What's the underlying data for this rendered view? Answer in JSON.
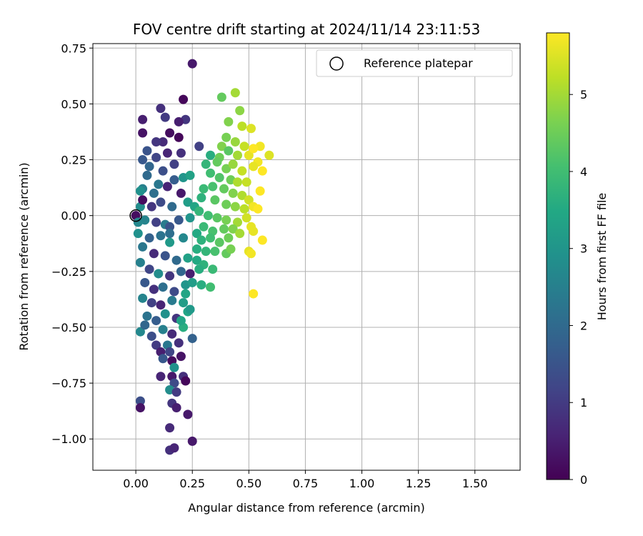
{
  "chart_data": {
    "type": "scatter",
    "title": "FOV centre drift starting at 2024/11/14 23:11:53",
    "xlabel": "Angular distance from reference (arcmin)",
    "ylabel": "Rotation from reference (arcmin)",
    "xlim": [
      -0.19,
      1.7
    ],
    "ylim": [
      -1.14,
      0.77
    ],
    "xticks": [
      0.0,
      0.25,
      0.5,
      0.75,
      1.0,
      1.25,
      1.5
    ],
    "xtick_labels": [
      "0.00",
      "0.25",
      "0.50",
      "0.75",
      "1.00",
      "1.25",
      "1.50"
    ],
    "yticks": [
      0.75,
      0.5,
      0.25,
      0.0,
      -0.25,
      -0.5,
      -0.75,
      -1.0
    ],
    "ytick_labels": [
      "0.75",
      "0.50",
      "0.25",
      "0.00",
      "−0.25",
      "−0.50",
      "−0.75",
      "−1.00"
    ],
    "grid": true,
    "legend": {
      "placement": "top-right",
      "entries": [
        {
          "label": "Reference platepar",
          "marker": "open-circle"
        }
      ]
    },
    "reference_point": {
      "x": 0.0,
      "y": 0.0
    },
    "colorbar": {
      "label": "Hours from first FF file",
      "colormap": "viridis",
      "range": [
        0,
        5.8
      ],
      "ticks": [
        0,
        1,
        2,
        3,
        4,
        5
      ],
      "tick_labels": [
        "0",
        "1",
        "2",
        "3",
        "4",
        "5"
      ]
    },
    "points": [
      {
        "x": 0.25,
        "y": 0.68,
        "h": 0.4
      },
      {
        "x": 0.21,
        "y": 0.52,
        "h": 0.1
      },
      {
        "x": 0.03,
        "y": 0.43,
        "h": 0.5
      },
      {
        "x": 0.03,
        "y": 0.37,
        "h": 0.3
      },
      {
        "x": 0.11,
        "y": 0.48,
        "h": 0.8
      },
      {
        "x": 0.13,
        "y": 0.44,
        "h": 1.0
      },
      {
        "x": 0.22,
        "y": 0.43,
        "h": 0.9
      },
      {
        "x": 0.19,
        "y": 0.42,
        "h": 0.5
      },
      {
        "x": 0.15,
        "y": 0.37,
        "h": 0.2
      },
      {
        "x": 0.19,
        "y": 0.35,
        "h": 0.1
      },
      {
        "x": 0.12,
        "y": 0.33,
        "h": 0.7
      },
      {
        "x": 0.09,
        "y": 0.33,
        "h": 0.9
      },
      {
        "x": 0.05,
        "y": 0.29,
        "h": 1.5
      },
      {
        "x": 0.14,
        "y": 0.28,
        "h": 0.6
      },
      {
        "x": 0.2,
        "y": 0.28,
        "h": 0.8
      },
      {
        "x": 0.09,
        "y": 0.26,
        "h": 1.2
      },
      {
        "x": 0.17,
        "y": 0.23,
        "h": 1.1
      },
      {
        "x": 0.03,
        "y": 0.25,
        "h": 1.6
      },
      {
        "x": 0.06,
        "y": 0.22,
        "h": 1.9
      },
      {
        "x": 0.12,
        "y": 0.2,
        "h": 1.4
      },
      {
        "x": 0.05,
        "y": 0.18,
        "h": 2.0
      },
      {
        "x": 0.17,
        "y": 0.16,
        "h": 1.7
      },
      {
        "x": 0.21,
        "y": 0.17,
        "h": 3.0
      },
      {
        "x": 0.24,
        "y": 0.18,
        "h": 3.3
      },
      {
        "x": 0.1,
        "y": 0.14,
        "h": 2.3
      },
      {
        "x": 0.14,
        "y": 0.13,
        "h": 0.6
      },
      {
        "x": 0.03,
        "y": 0.12,
        "h": 2.5
      },
      {
        "x": 0.08,
        "y": 0.1,
        "h": 2.1
      },
      {
        "x": 0.2,
        "y": 0.1,
        "h": 0.4
      },
      {
        "x": 0.23,
        "y": 0.06,
        "h": 3.2
      },
      {
        "x": 0.02,
        "y": 0.04,
        "h": 2.8
      },
      {
        "x": 0.11,
        "y": 0.06,
        "h": 1.3
      },
      {
        "x": 0.16,
        "y": 0.04,
        "h": 2.0
      },
      {
        "x": 0.26,
        "y": 0.04,
        "h": 3.4
      },
      {
        "x": 0.03,
        "y": 0.07,
        "h": 0.2
      },
      {
        "x": 0.04,
        "y": -0.02,
        "h": 2.6
      },
      {
        "x": 0.09,
        "y": -0.03,
        "h": 1.1
      },
      {
        "x": 0.13,
        "y": -0.04,
        "h": 2.4
      },
      {
        "x": 0.19,
        "y": -0.02,
        "h": 1.6
      },
      {
        "x": 0.24,
        "y": -0.01,
        "h": 3.0
      },
      {
        "x": 0.01,
        "y": -0.08,
        "h": 2.9
      },
      {
        "x": 0.06,
        "y": -0.1,
        "h": 1.8
      },
      {
        "x": 0.11,
        "y": -0.09,
        "h": 2.2
      },
      {
        "x": 0.15,
        "y": -0.12,
        "h": 3.1
      },
      {
        "x": 0.21,
        "y": -0.1,
        "h": 2.7
      },
      {
        "x": 0.27,
        "y": -0.08,
        "h": 3.5
      },
      {
        "x": 0.03,
        "y": -0.14,
        "h": 2.3
      },
      {
        "x": 0.08,
        "y": -0.17,
        "h": 0.7
      },
      {
        "x": 0.13,
        "y": -0.18,
        "h": 1.5
      },
      {
        "x": 0.18,
        "y": -0.2,
        "h": 2.0
      },
      {
        "x": 0.23,
        "y": -0.19,
        "h": 3.3
      },
      {
        "x": 0.02,
        "y": -0.21,
        "h": 2.5
      },
      {
        "x": 0.06,
        "y": -0.24,
        "h": 1.2
      },
      {
        "x": 0.1,
        "y": -0.26,
        "h": 2.8
      },
      {
        "x": 0.15,
        "y": -0.27,
        "h": 0.9
      },
      {
        "x": 0.2,
        "y": -0.25,
        "h": 1.9
      },
      {
        "x": 0.24,
        "y": -0.26,
        "h": 0.5
      },
      {
        "x": 0.04,
        "y": -0.3,
        "h": 1.6
      },
      {
        "x": 0.08,
        "y": -0.33,
        "h": 0.8
      },
      {
        "x": 0.12,
        "y": -0.32,
        "h": 2.1
      },
      {
        "x": 0.17,
        "y": -0.34,
        "h": 1.3
      },
      {
        "x": 0.22,
        "y": -0.31,
        "h": 3.0
      },
      {
        "x": 0.03,
        "y": -0.37,
        "h": 2.6
      },
      {
        "x": 0.07,
        "y": -0.39,
        "h": 1.1
      },
      {
        "x": 0.11,
        "y": -0.4,
        "h": 0.6
      },
      {
        "x": 0.16,
        "y": -0.38,
        "h": 2.4
      },
      {
        "x": 0.21,
        "y": -0.39,
        "h": 3.2
      },
      {
        "x": 0.05,
        "y": -0.45,
        "h": 2.2
      },
      {
        "x": 0.09,
        "y": -0.47,
        "h": 1.7
      },
      {
        "x": 0.13,
        "y": -0.44,
        "h": 2.9
      },
      {
        "x": 0.18,
        "y": -0.46,
        "h": 0.9
      },
      {
        "x": 0.23,
        "y": -0.43,
        "h": 3.4
      },
      {
        "x": 0.02,
        "y": -0.52,
        "h": 2.7
      },
      {
        "x": 0.07,
        "y": -0.54,
        "h": 1.4
      },
      {
        "x": 0.12,
        "y": -0.51,
        "h": 2.5
      },
      {
        "x": 0.16,
        "y": -0.53,
        "h": 0.7
      },
      {
        "x": 0.21,
        "y": -0.5,
        "h": 3.6
      },
      {
        "x": 0.25,
        "y": -0.55,
        "h": 1.8
      },
      {
        "x": 0.09,
        "y": -0.58,
        "h": 1.0
      },
      {
        "x": 0.14,
        "y": -0.58,
        "h": 2.3
      },
      {
        "x": 0.19,
        "y": -0.57,
        "h": 0.8
      },
      {
        "x": 0.04,
        "y": -0.49,
        "h": 1.9
      },
      {
        "x": 0.11,
        "y": -0.61,
        "h": 0.5
      },
      {
        "x": 0.15,
        "y": -0.61,
        "h": 1.2
      },
      {
        "x": 0.2,
        "y": -0.63,
        "h": 0.3
      },
      {
        "x": 0.12,
        "y": -0.64,
        "h": 1.6
      },
      {
        "x": 0.16,
        "y": -0.65,
        "h": 0.2
      },
      {
        "x": 0.17,
        "y": -0.68,
        "h": 2.9
      },
      {
        "x": 0.11,
        "y": -0.72,
        "h": 0.6
      },
      {
        "x": 0.16,
        "y": -0.72,
        "h": 0.4
      },
      {
        "x": 0.21,
        "y": -0.72,
        "h": 0.8
      },
      {
        "x": 0.22,
        "y": -0.74,
        "h": 0.1
      },
      {
        "x": 0.17,
        "y": -0.75,
        "h": 1.3
      },
      {
        "x": 0.15,
        "y": -0.78,
        "h": 2.8
      },
      {
        "x": 0.18,
        "y": -0.79,
        "h": 1.0
      },
      {
        "x": 0.02,
        "y": -0.83,
        "h": 1.4
      },
      {
        "x": 0.02,
        "y": -0.86,
        "h": 0.3
      },
      {
        "x": 0.16,
        "y": -0.84,
        "h": 0.9
      },
      {
        "x": 0.18,
        "y": -0.86,
        "h": 0.5
      },
      {
        "x": 0.23,
        "y": -0.89,
        "h": 0.4
      },
      {
        "x": 0.15,
        "y": -0.95,
        "h": 0.7
      },
      {
        "x": 0.25,
        "y": -1.01,
        "h": 0.4
      },
      {
        "x": 0.15,
        "y": -1.05,
        "h": 0.8
      },
      {
        "x": 0.17,
        "y": -1.04,
        "h": 0.6
      },
      {
        "x": 0.0,
        "y": 0.0,
        "h": 0.2
      },
      {
        "x": 0.02,
        "y": 0.11,
        "h": 2.9
      },
      {
        "x": 0.07,
        "y": 0.04,
        "h": 0.9
      },
      {
        "x": 0.01,
        "y": -0.03,
        "h": 2.7
      },
      {
        "x": 0.15,
        "y": -0.05,
        "h": 1.5
      },
      {
        "x": 0.15,
        "y": -0.08,
        "h": 2.1
      },
      {
        "x": 0.28,
        "y": 0.31,
        "h": 1.1
      },
      {
        "x": 0.31,
        "y": 0.23,
        "h": 3.8
      },
      {
        "x": 0.33,
        "y": 0.27,
        "h": 3.6
      },
      {
        "x": 0.37,
        "y": 0.26,
        "h": 4.5
      },
      {
        "x": 0.38,
        "y": 0.53,
        "h": 4.4
      },
      {
        "x": 0.44,
        "y": 0.55,
        "h": 5.0
      },
      {
        "x": 0.46,
        "y": 0.47,
        "h": 4.8
      },
      {
        "x": 0.41,
        "y": 0.42,
        "h": 4.7
      },
      {
        "x": 0.47,
        "y": 0.4,
        "h": 5.2
      },
      {
        "x": 0.51,
        "y": 0.39,
        "h": 5.5
      },
      {
        "x": 0.4,
        "y": 0.35,
        "h": 4.6
      },
      {
        "x": 0.44,
        "y": 0.33,
        "h": 4.9
      },
      {
        "x": 0.48,
        "y": 0.31,
        "h": 5.3
      },
      {
        "x": 0.38,
        "y": 0.31,
        "h": 4.7
      },
      {
        "x": 0.41,
        "y": 0.29,
        "h": 4.3
      },
      {
        "x": 0.45,
        "y": 0.27,
        "h": 5.0
      },
      {
        "x": 0.5,
        "y": 0.27,
        "h": 5.6
      },
      {
        "x": 0.55,
        "y": 0.31,
        "h": 5.7
      },
      {
        "x": 0.59,
        "y": 0.27,
        "h": 5.5
      },
      {
        "x": 0.52,
        "y": 0.3,
        "h": 5.8
      },
      {
        "x": 0.54,
        "y": 0.24,
        "h": 5.7
      },
      {
        "x": 0.36,
        "y": 0.24,
        "h": 4.4
      },
      {
        "x": 0.4,
        "y": 0.21,
        "h": 4.6
      },
      {
        "x": 0.43,
        "y": 0.23,
        "h": 4.9
      },
      {
        "x": 0.47,
        "y": 0.2,
        "h": 5.3
      },
      {
        "x": 0.52,
        "y": 0.22,
        "h": 5.6
      },
      {
        "x": 0.56,
        "y": 0.2,
        "h": 5.8
      },
      {
        "x": 0.33,
        "y": 0.19,
        "h": 4.0
      },
      {
        "x": 0.37,
        "y": 0.17,
        "h": 4.2
      },
      {
        "x": 0.42,
        "y": 0.16,
        "h": 4.5
      },
      {
        "x": 0.45,
        "y": 0.15,
        "h": 5.1
      },
      {
        "x": 0.49,
        "y": 0.15,
        "h": 5.3
      },
      {
        "x": 0.55,
        "y": 0.11,
        "h": 5.8
      },
      {
        "x": 0.3,
        "y": 0.12,
        "h": 3.9
      },
      {
        "x": 0.34,
        "y": 0.13,
        "h": 4.1
      },
      {
        "x": 0.39,
        "y": 0.12,
        "h": 4.4
      },
      {
        "x": 0.43,
        "y": 0.1,
        "h": 4.7
      },
      {
        "x": 0.47,
        "y": 0.09,
        "h": 5.1
      },
      {
        "x": 0.5,
        "y": 0.07,
        "h": 5.4
      },
      {
        "x": 0.29,
        "y": 0.08,
        "h": 3.7
      },
      {
        "x": 0.35,
        "y": 0.07,
        "h": 4.3
      },
      {
        "x": 0.4,
        "y": 0.05,
        "h": 4.5
      },
      {
        "x": 0.44,
        "y": 0.04,
        "h": 4.8
      },
      {
        "x": 0.48,
        "y": 0.03,
        "h": 5.2
      },
      {
        "x": 0.52,
        "y": 0.04,
        "h": 5.7
      },
      {
        "x": 0.54,
        "y": 0.03,
        "h": 5.8
      },
      {
        "x": 0.28,
        "y": 0.02,
        "h": 3.8
      },
      {
        "x": 0.32,
        "y": 0.0,
        "h": 4.0
      },
      {
        "x": 0.36,
        "y": -0.01,
        "h": 4.3
      },
      {
        "x": 0.4,
        "y": -0.02,
        "h": 4.6
      },
      {
        "x": 0.45,
        "y": -0.03,
        "h": 5.0
      },
      {
        "x": 0.49,
        "y": -0.01,
        "h": 5.4
      },
      {
        "x": 0.51,
        "y": -0.05,
        "h": 5.6
      },
      {
        "x": 0.3,
        "y": -0.05,
        "h": 3.9
      },
      {
        "x": 0.34,
        "y": -0.07,
        "h": 4.1
      },
      {
        "x": 0.39,
        "y": -0.06,
        "h": 4.4
      },
      {
        "x": 0.43,
        "y": -0.06,
        "h": 4.7
      },
      {
        "x": 0.46,
        "y": -0.08,
        "h": 5.0
      },
      {
        "x": 0.52,
        "y": -0.07,
        "h": 5.6
      },
      {
        "x": 0.29,
        "y": -0.11,
        "h": 3.7
      },
      {
        "x": 0.33,
        "y": -0.1,
        "h": 4.0
      },
      {
        "x": 0.37,
        "y": -0.12,
        "h": 4.3
      },
      {
        "x": 0.41,
        "y": -0.1,
        "h": 4.5
      },
      {
        "x": 0.56,
        "y": -0.11,
        "h": 5.8
      },
      {
        "x": 0.27,
        "y": -0.15,
        "h": 3.6
      },
      {
        "x": 0.31,
        "y": -0.16,
        "h": 3.8
      },
      {
        "x": 0.35,
        "y": -0.16,
        "h": 4.1
      },
      {
        "x": 0.4,
        "y": -0.17,
        "h": 4.4
      },
      {
        "x": 0.42,
        "y": -0.15,
        "h": 4.6
      },
      {
        "x": 0.5,
        "y": -0.16,
        "h": 5.6
      },
      {
        "x": 0.51,
        "y": -0.17,
        "h": 5.7
      },
      {
        "x": 0.27,
        "y": -0.2,
        "h": 3.5
      },
      {
        "x": 0.3,
        "y": -0.22,
        "h": 3.7
      },
      {
        "x": 0.34,
        "y": -0.24,
        "h": 3.9
      },
      {
        "x": 0.28,
        "y": -0.24,
        "h": 3.6
      },
      {
        "x": 0.25,
        "y": -0.3,
        "h": 3.2
      },
      {
        "x": 0.33,
        "y": -0.32,
        "h": 4.0
      },
      {
        "x": 0.29,
        "y": -0.31,
        "h": 3.6
      },
      {
        "x": 0.52,
        "y": -0.35,
        "h": 5.8
      },
      {
        "x": 0.22,
        "y": -0.35,
        "h": 3.4
      },
      {
        "x": 0.24,
        "y": -0.42,
        "h": 3.1
      },
      {
        "x": 0.2,
        "y": -0.47,
        "h": 3.4
      }
    ]
  }
}
